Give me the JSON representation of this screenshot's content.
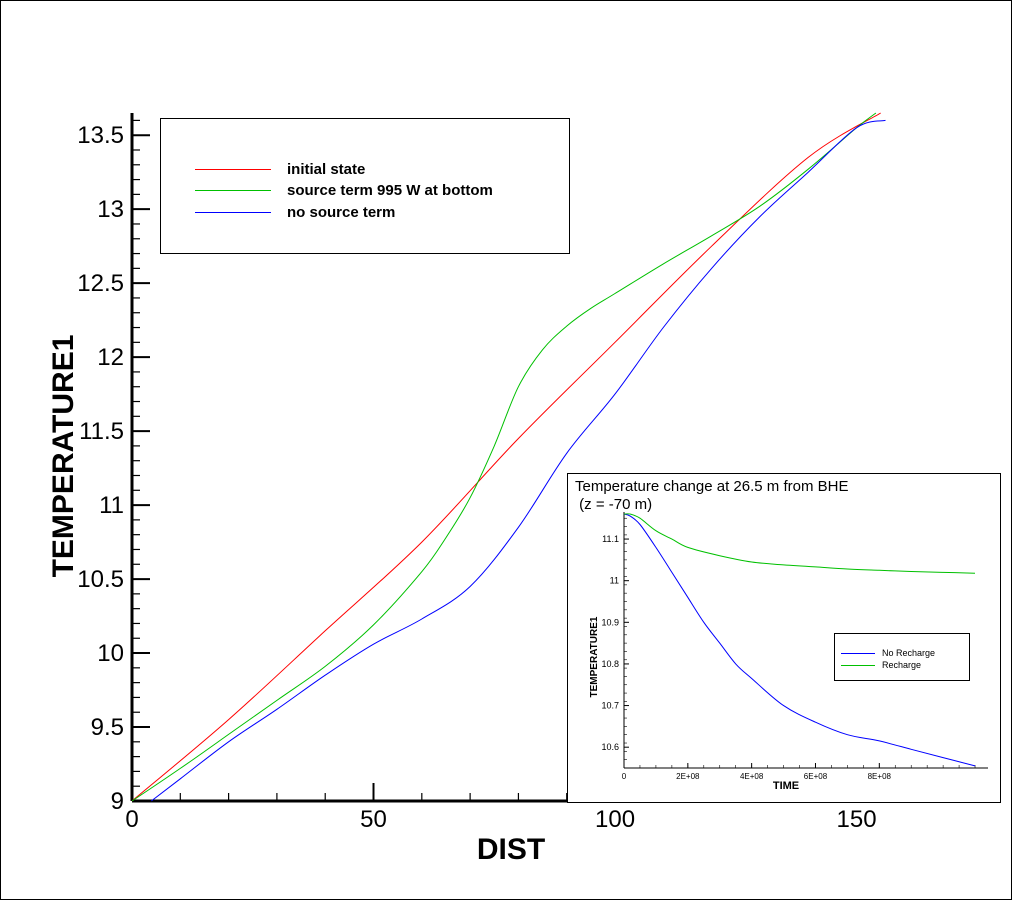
{
  "chart_data": [
    {
      "type": "line",
      "xlabel": "DIST",
      "ylabel": "TEMPERATURE1",
      "xlim": [
        0,
        165
      ],
      "ylim": [
        9,
        13.65
      ],
      "x_ticks": [
        0,
        50,
        100,
        150
      ],
      "y_ticks": [
        9,
        9.5,
        10,
        10.5,
        11,
        11.5,
        12,
        12.5,
        13,
        13.5
      ],
      "x_tick_labels": [
        "0",
        "50",
        "100",
        "150"
      ],
      "y_tick_labels": [
        "9",
        "9.5",
        "10",
        "10.5",
        "11",
        "11.5",
        "12",
        "12.5",
        "13",
        "13.5"
      ],
      "legend_placement": "top-left",
      "grid": false,
      "series": [
        {
          "name": "initial state",
          "color": "#ff0000",
          "x": [
            0,
            20,
            40,
            60,
            80,
            100,
            120,
            140,
            155
          ],
          "y": [
            9.0,
            9.55,
            10.15,
            10.75,
            11.45,
            12.1,
            12.75,
            13.35,
            13.65
          ]
        },
        {
          "name": "source term 995 W at bottom",
          "color": "#00c000",
          "x": [
            0,
            10,
            20,
            30,
            40,
            50,
            60,
            65,
            70,
            75,
            80,
            85,
            90,
            95,
            100,
            110,
            120,
            130,
            140,
            150,
            154
          ],
          "y": [
            9.0,
            9.22,
            9.45,
            9.68,
            9.91,
            10.19,
            10.55,
            10.78,
            11.05,
            11.4,
            11.8,
            12.05,
            12.21,
            12.33,
            12.43,
            12.63,
            12.82,
            13.02,
            13.27,
            13.55,
            13.65
          ]
        },
        {
          "name": "no source term",
          "color": "#0000ff",
          "x": [
            4,
            10,
            20,
            30,
            40,
            50,
            60,
            70,
            80,
            90,
            100,
            110,
            120,
            130,
            140,
            150,
            156
          ],
          "y": [
            9.0,
            9.15,
            9.4,
            9.62,
            9.85,
            10.06,
            10.23,
            10.45,
            10.85,
            11.35,
            11.75,
            12.2,
            12.6,
            12.95,
            13.25,
            13.55,
            13.6
          ]
        }
      ]
    },
    {
      "type": "line",
      "title": "Temperature change at 26.5 m from BHE",
      "subtitle": " (z = -70 m)",
      "xlabel": "TIME",
      "ylabel": "TEMPERATURE1",
      "xlim": [
        0,
        1150000000
      ],
      "ylim": [
        10.55,
        11.165
      ],
      "x_ticks": [
        0,
        200000000,
        400000000,
        600000000,
        800000000
      ],
      "x_tick_labels": [
        "0",
        "2E+08",
        "4E+08",
        "6E+08",
        "8E+08"
      ],
      "y_ticks": [
        10.6,
        10.7,
        10.8,
        10.9,
        11,
        11.1
      ],
      "y_tick_labels": [
        "10.6",
        "10.7",
        "10.8",
        "10.9",
        "11",
        "11.1"
      ],
      "legend_placement": "right",
      "grid": false,
      "series": [
        {
          "name": "No Recharge",
          "color": "#0000ff",
          "x": [
            0,
            20000000,
            50000000,
            100000000,
            150000000,
            200000000,
            250000000,
            300000000,
            350000000,
            400000000,
            500000000,
            600000000,
            700000000,
            800000000,
            900000000,
            1000000000,
            1100000000
          ],
          "y": [
            11.16,
            11.155,
            11.135,
            11.08,
            11.02,
            10.96,
            10.9,
            10.85,
            10.8,
            10.765,
            10.7,
            10.66,
            10.63,
            10.615,
            10.595,
            10.575,
            10.555
          ]
        },
        {
          "name": "Recharge",
          "color": "#00c000",
          "x": [
            0,
            20000000,
            50000000,
            100000000,
            150000000,
            200000000,
            300000000,
            400000000,
            500000000,
            600000000,
            700000000,
            800000000,
            900000000,
            1000000000,
            1100000000
          ],
          "y": [
            11.16,
            11.16,
            11.15,
            11.12,
            11.1,
            11.08,
            11.06,
            11.045,
            11.038,
            11.033,
            11.028,
            11.025,
            11.022,
            11.02,
            11.018
          ]
        }
      ]
    }
  ]
}
